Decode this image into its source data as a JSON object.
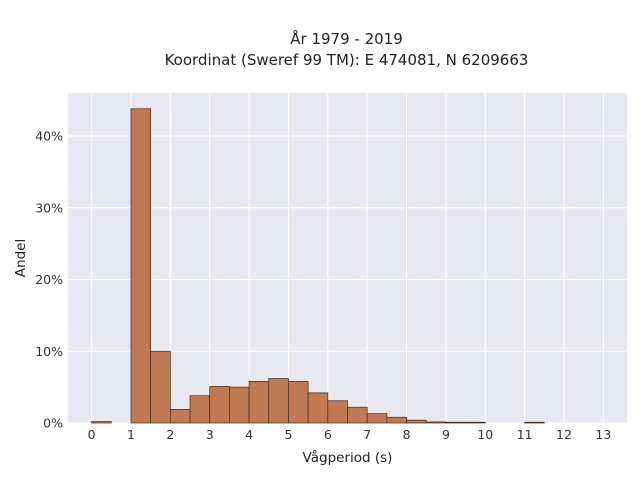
{
  "chart_data": {
    "type": "bar",
    "title": "År 1979 - 2019",
    "subtitle": "Koordinat (Sweref 99 TM): E 474081, N 6209663",
    "xlabel": "Vågperiod (s)",
    "ylabel": "Andel",
    "xlim": [
      -0.6,
      13.6
    ],
    "ylim": [
      0,
      0.46
    ],
    "bin_width": 0.5,
    "x_ticks": [
      "0",
      "1",
      "2",
      "3",
      "4",
      "5",
      "6",
      "7",
      "8",
      "9",
      "10",
      "11",
      "12",
      "13"
    ],
    "y_ticks": [
      "0%",
      "10%",
      "20%",
      "30%",
      "40%"
    ],
    "bin_starts": [
      0,
      1,
      1.5,
      2,
      2.5,
      3,
      3.5,
      4,
      4.5,
      5,
      5.5,
      6,
      6.5,
      7,
      7.5,
      8,
      8.5,
      9,
      9.5,
      11
    ],
    "values": [
      0.002,
      0.438,
      0.1,
      0.019,
      0.038,
      0.051,
      0.05,
      0.058,
      0.062,
      0.058,
      0.042,
      0.031,
      0.022,
      0.013,
      0.008,
      0.004,
      0.0015,
      0.001,
      0.001,
      0.001
    ],
    "grid": true,
    "colors": {
      "bar_fill": "#c07a53",
      "bar_edge": "#3c2a20",
      "plot_background": "#e8e8f0",
      "grid": "#ffffff"
    }
  }
}
